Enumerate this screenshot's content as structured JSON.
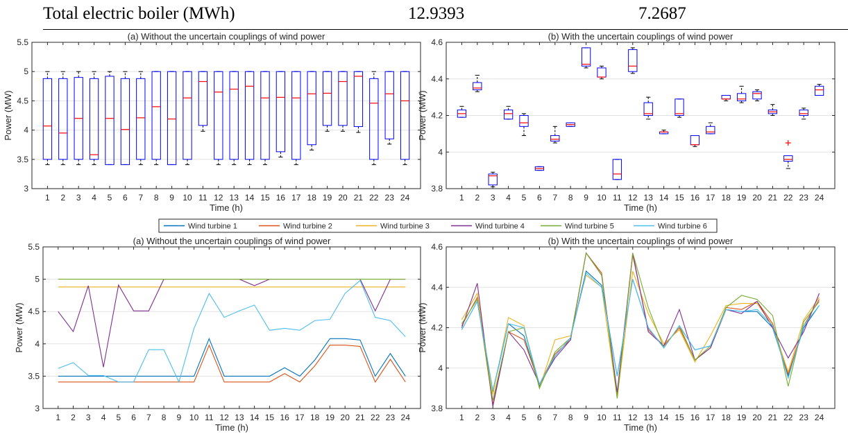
{
  "table_row": {
    "label": "Total electric boiler (MWh)",
    "value_1": "12.9393",
    "value_2": "7.2687"
  },
  "legend": {
    "entries": [
      {
        "name": "Wind turbine 1",
        "color": "#0072BD"
      },
      {
        "name": "Wind turbine 2",
        "color": "#D95319"
      },
      {
        "name": "Wind turbine 3",
        "color": "#EDB120"
      },
      {
        "name": "Wind turbine 4",
        "color": "#7E2F8E"
      },
      {
        "name": "Wind turbine 5",
        "color": "#77AC30"
      },
      {
        "name": "Wind turbine 6",
        "color": "#4DBEEE"
      }
    ]
  },
  "chart_data": [
    {
      "type": "box",
      "title": "(a) Without the uncertain couplings of wind power",
      "xlabel": "Time (h)",
      "ylabel": "Power (MW)",
      "x": [
        1,
        2,
        3,
        4,
        5,
        6,
        7,
        8,
        9,
        10,
        11,
        12,
        13,
        14,
        15,
        16,
        17,
        18,
        19,
        20,
        21,
        22,
        23,
        24
      ],
      "ylim": [
        3,
        5.5
      ],
      "yticks": [
        "3",
        "3.5",
        "4",
        "4.5",
        "5",
        "5.5"
      ],
      "grid": true,
      "box_color": "#0000FF",
      "median_color": "#FF0000",
      "boxes": [
        {
          "whisker_low": 3.41,
          "q1": 3.5,
          "median": 4.07,
          "q3": 4.88,
          "whisker_high": 5.0
        },
        {
          "whisker_low": 3.41,
          "q1": 3.5,
          "median": 3.95,
          "q3": 4.88,
          "whisker_high": 5.0
        },
        {
          "whisker_low": 3.41,
          "q1": 3.5,
          "median": 4.2,
          "q3": 4.9,
          "whisker_high": 5.0
        },
        {
          "whisker_low": 3.41,
          "q1": 3.5,
          "median": 3.58,
          "q3": 4.88,
          "whisker_high": 5.0
        },
        {
          "whisker_low": 3.41,
          "q1": 3.41,
          "median": 4.2,
          "q3": 4.92,
          "whisker_high": 5.0
        },
        {
          "whisker_low": 3.41,
          "q1": 3.41,
          "median": 4.01,
          "q3": 4.88,
          "whisker_high": 5.0
        },
        {
          "whisker_low": 3.41,
          "q1": 3.5,
          "median": 4.21,
          "q3": 4.88,
          "whisker_high": 5.0
        },
        {
          "whisker_low": 3.41,
          "q1": 3.5,
          "median": 4.4,
          "q3": 5.0,
          "whisker_high": 5.0
        },
        {
          "whisker_low": 3.41,
          "q1": 3.41,
          "median": 4.19,
          "q3": 5.0,
          "whisker_high": 5.0
        },
        {
          "whisker_low": 3.41,
          "q1": 3.5,
          "median": 4.55,
          "q3": 5.0,
          "whisker_high": 5.0
        },
        {
          "whisker_low": 3.98,
          "q1": 4.08,
          "median": 4.83,
          "q3": 5.0,
          "whisker_high": 5.0
        },
        {
          "whisker_low": 3.41,
          "q1": 3.5,
          "median": 4.65,
          "q3": 5.0,
          "whisker_high": 5.0
        },
        {
          "whisker_low": 3.41,
          "q1": 3.5,
          "median": 4.7,
          "q3": 5.0,
          "whisker_high": 5.0
        },
        {
          "whisker_low": 3.41,
          "q1": 3.5,
          "median": 4.75,
          "q3": 5.0,
          "whisker_high": 5.0
        },
        {
          "whisker_low": 3.41,
          "q1": 3.5,
          "median": 4.55,
          "q3": 5.0,
          "whisker_high": 5.0
        },
        {
          "whisker_low": 3.54,
          "q1": 3.63,
          "median": 4.56,
          "q3": 5.0,
          "whisker_high": 5.0
        },
        {
          "whisker_low": 3.41,
          "q1": 3.5,
          "median": 4.55,
          "q3": 5.0,
          "whisker_high": 5.0
        },
        {
          "whisker_low": 3.66,
          "q1": 3.75,
          "median": 4.62,
          "q3": 5.0,
          "whisker_high": 5.0
        },
        {
          "whisker_low": 3.98,
          "q1": 4.08,
          "median": 4.63,
          "q3": 5.0,
          "whisker_high": 5.0
        },
        {
          "whisker_low": 3.98,
          "q1": 4.08,
          "median": 4.83,
          "q3": 5.0,
          "whisker_high": 5.0
        },
        {
          "whisker_low": 3.96,
          "q1": 4.06,
          "median": 4.92,
          "q3": 5.0,
          "whisker_high": 5.0
        },
        {
          "whisker_low": 3.41,
          "q1": 3.5,
          "median": 4.46,
          "q3": 4.88,
          "whisker_high": 5.0
        },
        {
          "whisker_low": 3.76,
          "q1": 3.85,
          "median": 4.62,
          "q3": 5.0,
          "whisker_high": 5.0
        },
        {
          "whisker_low": 3.41,
          "q1": 3.5,
          "median": 4.5,
          "q3": 5.0,
          "whisker_high": 5.0
        }
      ],
      "outliers": []
    },
    {
      "type": "box",
      "title": "(b) With the uncertain couplings of wind power",
      "xlabel": "Time (h)",
      "ylabel": "Power (MW)",
      "x": [
        1,
        2,
        3,
        4,
        5,
        6,
        7,
        8,
        9,
        10,
        11,
        12,
        13,
        14,
        15,
        16,
        17,
        18,
        19,
        20,
        21,
        22,
        23,
        24
      ],
      "ylim": [
        3.8,
        4.6
      ],
      "yticks": [
        "3.8",
        "4",
        "4.2",
        "4.4",
        "4.6"
      ],
      "grid": true,
      "box_color": "#0000FF",
      "median_color": "#FF0000",
      "boxes": [
        {
          "whisker_low": 4.19,
          "q1": 4.19,
          "median": 4.21,
          "q3": 4.23,
          "whisker_high": 4.25
        },
        {
          "whisker_low": 4.33,
          "q1": 4.34,
          "median": 4.35,
          "q3": 4.38,
          "whisker_high": 4.42
        },
        {
          "whisker_low": 3.81,
          "q1": 3.82,
          "median": 3.87,
          "q3": 3.88,
          "whisker_high": 3.89
        },
        {
          "whisker_low": 4.18,
          "q1": 4.18,
          "median": 4.21,
          "q3": 4.23,
          "whisker_high": 4.25
        },
        {
          "whisker_low": 4.09,
          "q1": 4.14,
          "median": 4.16,
          "q3": 4.2,
          "whisker_high": 4.21
        },
        {
          "whisker_low": 3.9,
          "q1": 3.9,
          "median": 3.91,
          "q3": 3.92,
          "whisker_high": 3.92
        },
        {
          "whisker_low": 4.05,
          "q1": 4.06,
          "median": 4.07,
          "q3": 4.09,
          "whisker_high": 4.14
        },
        {
          "whisker_low": 4.14,
          "q1": 4.14,
          "median": 4.15,
          "q3": 4.16,
          "whisker_high": 4.16
        },
        {
          "whisker_low": 4.46,
          "q1": 4.47,
          "median": 4.48,
          "q3": 4.57,
          "whisker_high": 4.57
        },
        {
          "whisker_low": 4.4,
          "q1": 4.41,
          "median": 4.41,
          "q3": 4.46,
          "whisker_high": 4.47
        },
        {
          "whisker_low": 3.85,
          "q1": 3.85,
          "median": 3.88,
          "q3": 3.96,
          "whisker_high": 3.96
        },
        {
          "whisker_low": 4.43,
          "q1": 4.44,
          "median": 4.47,
          "q3": 4.56,
          "whisker_high": 4.57
        },
        {
          "whisker_low": 4.18,
          "q1": 4.2,
          "median": 4.21,
          "q3": 4.27,
          "whisker_high": 4.3
        },
        {
          "whisker_low": 4.1,
          "q1": 4.1,
          "median": 4.11,
          "q3": 4.11,
          "whisker_high": 4.12
        },
        {
          "whisker_low": 4.19,
          "q1": 4.2,
          "median": 4.21,
          "q3": 4.29,
          "whisker_high": 4.29
        },
        {
          "whisker_low": 4.03,
          "q1": 4.04,
          "median": 4.04,
          "q3": 4.09,
          "whisker_high": 4.09
        },
        {
          "whisker_low": 4.1,
          "q1": 4.1,
          "median": 4.11,
          "q3": 4.14,
          "whisker_high": 4.16
        },
        {
          "whisker_low": 4.28,
          "q1": 4.29,
          "median": 4.29,
          "q3": 4.31,
          "whisker_high": 4.31
        },
        {
          "whisker_low": 4.27,
          "q1": 4.28,
          "median": 4.29,
          "q3": 4.32,
          "whisker_high": 4.36
        },
        {
          "whisker_low": 4.28,
          "q1": 4.29,
          "median": 4.32,
          "q3": 4.33,
          "whisker_high": 4.34
        },
        {
          "whisker_low": 4.2,
          "q1": 4.21,
          "median": 4.22,
          "q3": 4.23,
          "whisker_high": 4.26
        },
        {
          "whisker_low": 3.91,
          "q1": 3.95,
          "median": 3.96,
          "q3": 3.98,
          "whisker_high": 3.98
        },
        {
          "whisker_low": 4.18,
          "q1": 4.2,
          "median": 4.21,
          "q3": 4.23,
          "whisker_high": 4.24
        },
        {
          "whisker_low": 4.31,
          "q1": 4.31,
          "median": 4.34,
          "q3": 4.36,
          "whisker_high": 4.37
        }
      ],
      "outliers": [
        {
          "x": 22,
          "y": 4.05
        }
      ]
    },
    {
      "type": "line",
      "title": "(a) Without the uncertain couplings of wind power",
      "xlabel": "Time (h)",
      "ylabel": "Power (MW)",
      "x": [
        1,
        2,
        3,
        4,
        5,
        6,
        7,
        8,
        9,
        10,
        11,
        12,
        13,
        14,
        15,
        16,
        17,
        18,
        19,
        20,
        21,
        22,
        23,
        24
      ],
      "ylim": [
        3,
        5.5
      ],
      "yticks": [
        "3",
        "3.5",
        "4",
        "4.5",
        "5",
        "5.5"
      ],
      "grid": true,
      "series": [
        {
          "name": "Wind turbine 1",
          "values": [
            3.5,
            3.5,
            3.5,
            3.5,
            3.5,
            3.5,
            3.5,
            3.5,
            3.5,
            3.5,
            4.08,
            3.5,
            3.5,
            3.5,
            3.5,
            3.63,
            3.5,
            3.75,
            4.08,
            4.08,
            4.06,
            3.5,
            3.85,
            3.5
          ]
        },
        {
          "name": "Wind turbine 2",
          "values": [
            3.41,
            3.41,
            3.41,
            3.41,
            3.41,
            3.41,
            3.41,
            3.41,
            3.41,
            3.41,
            3.98,
            3.41,
            3.41,
            3.41,
            3.41,
            3.54,
            3.41,
            3.66,
            3.98,
            3.98,
            3.96,
            3.41,
            3.76,
            3.41
          ]
        },
        {
          "name": "Wind turbine 3",
          "values": [
            4.88,
            4.88,
            4.88,
            4.88,
            4.88,
            4.88,
            4.88,
            4.88,
            4.88,
            4.88,
            4.88,
            4.88,
            4.88,
            4.88,
            4.88,
            4.88,
            4.88,
            4.88,
            4.88,
            4.88,
            4.88,
            4.88,
            4.88,
            4.88
          ]
        },
        {
          "name": "Wind turbine 4",
          "values": [
            4.5,
            4.19,
            4.9,
            3.64,
            4.91,
            4.51,
            4.51,
            5.0,
            5.0,
            5.0,
            5.0,
            5.0,
            5.0,
            4.9,
            5.0,
            5.0,
            5.0,
            5.0,
            5.0,
            5.0,
            5.0,
            4.51,
            5.0,
            5.0
          ]
        },
        {
          "name": "Wind turbine 5",
          "values": [
            5.0,
            5.0,
            5.0,
            5.0,
            5.0,
            5.0,
            5.0,
            5.0,
            5.0,
            5.0,
            5.0,
            5.0,
            5.0,
            5.0,
            5.0,
            5.0,
            5.0,
            5.0,
            5.0,
            5.0,
            5.0,
            5.0,
            5.0,
            5.0
          ]
        },
        {
          "name": "Wind turbine 6",
          "values": [
            3.62,
            3.71,
            3.51,
            3.51,
            3.41,
            3.41,
            3.91,
            3.91,
            3.41,
            4.24,
            4.78,
            4.41,
            4.51,
            4.6,
            4.21,
            4.24,
            4.21,
            4.36,
            4.38,
            4.78,
            4.98,
            4.41,
            4.36,
            4.11
          ]
        }
      ]
    },
    {
      "type": "line",
      "title": "(b) With the uncertain couplings of wind power",
      "xlabel": "Time (h)",
      "ylabel": "Power (MW)",
      "x": [
        1,
        2,
        3,
        4,
        5,
        6,
        7,
        8,
        9,
        10,
        11,
        12,
        13,
        14,
        15,
        16,
        17,
        18,
        19,
        20,
        21,
        22,
        23,
        24
      ],
      "ylim": [
        3.8,
        4.6
      ],
      "yticks": [
        "3.8",
        "4",
        "4.2",
        "4.4",
        "4.6"
      ],
      "grid": true,
      "series": [
        {
          "name": "Wind turbine 1",
          "values": [
            4.19,
            4.33,
            3.88,
            4.22,
            4.16,
            3.91,
            4.06,
            4.15,
            4.48,
            4.41,
            3.96,
            4.44,
            4.2,
            4.1,
            4.21,
            4.09,
            4.11,
            4.29,
            4.28,
            4.28,
            4.2,
            3.96,
            4.2,
            4.31
          ]
        },
        {
          "name": "Wind turbine 2",
          "values": [
            4.21,
            4.35,
            3.82,
            4.18,
            4.14,
            3.92,
            4.07,
            4.14,
            4.57,
            4.47,
            3.86,
            4.56,
            4.19,
            4.11,
            4.2,
            4.04,
            4.1,
            4.3,
            4.29,
            4.33,
            4.22,
            3.97,
            4.21,
            4.34
          ]
        },
        {
          "name": "Wind turbine 3",
          "values": [
            4.24,
            4.37,
            3.87,
            4.25,
            4.21,
            3.9,
            4.14,
            4.16,
            4.46,
            4.4,
            3.85,
            4.48,
            4.27,
            4.12,
            4.19,
            4.03,
            4.16,
            4.31,
            4.32,
            4.32,
            4.21,
            3.98,
            4.24,
            4.35
          ]
        },
        {
          "name": "Wind turbine 4",
          "values": [
            4.2,
            4.42,
            3.81,
            4.18,
            4.09,
            3.92,
            4.05,
            4.14,
            4.57,
            4.46,
            3.88,
            4.57,
            4.18,
            4.11,
            4.29,
            4.04,
            4.1,
            4.29,
            4.27,
            4.33,
            4.2,
            4.05,
            4.18,
            4.37
          ]
        },
        {
          "name": "Wind turbine 5",
          "values": [
            4.22,
            4.34,
            3.84,
            4.18,
            4.2,
            3.9,
            4.08,
            4.15,
            4.57,
            4.46,
            3.85,
            4.57,
            4.3,
            4.1,
            4.21,
            4.04,
            4.11,
            4.3,
            4.36,
            4.34,
            4.26,
            3.91,
            4.23,
            4.33
          ]
        },
        {
          "name": "Wind turbine 6",
          "values": [
            4.19,
            4.33,
            3.89,
            4.22,
            4.2,
            3.92,
            4.06,
            4.15,
            4.47,
            4.4,
            3.96,
            4.44,
            4.2,
            4.1,
            4.21,
            4.09,
            4.11,
            4.29,
            4.28,
            4.29,
            4.21,
            3.95,
            4.21,
            4.31
          ]
        }
      ]
    }
  ]
}
